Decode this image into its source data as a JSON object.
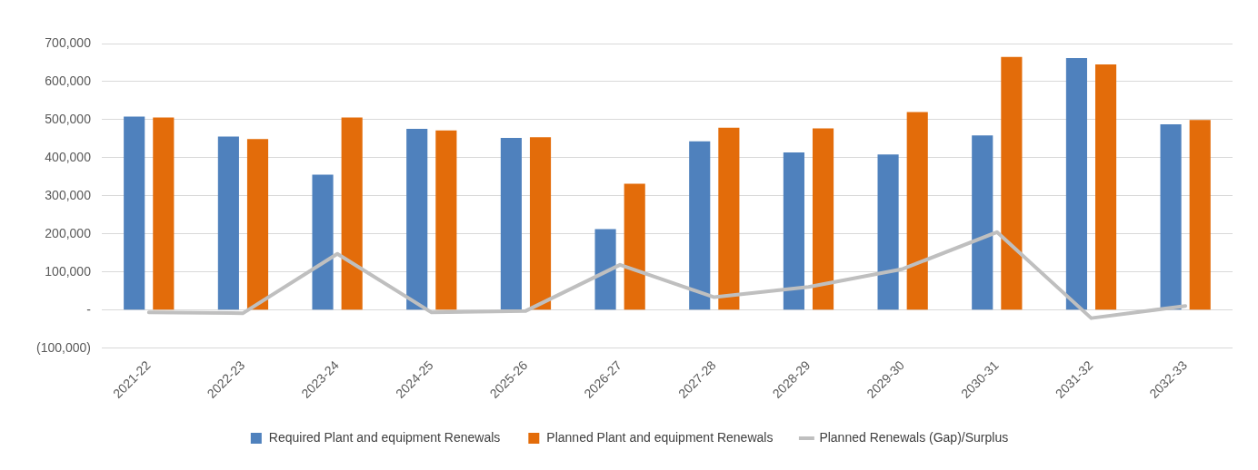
{
  "chart_data": {
    "type": "bar",
    "categories": [
      "2021-22",
      "2022-23",
      "2023-24",
      "2024-25",
      "2025-26",
      "2026-27",
      "2027-28",
      "2028-29",
      "2029-30",
      "2030-31",
      "2031-32",
      "2032-33"
    ],
    "series": [
      {
        "name": "Required Plant and equipment Renewals",
        "color": "#4f81bd",
        "values": [
          508000,
          456000,
          356000,
          476000,
          452000,
          213000,
          443000,
          414000,
          409000,
          459000,
          662000,
          488000
        ]
      },
      {
        "name": "Planned Plant and equipment Renewals",
        "color": "#e36c0a",
        "values": [
          506000,
          449000,
          506000,
          472000,
          454000,
          332000,
          479000,
          477000,
          520000,
          665000,
          645000,
          499000
        ]
      },
      {
        "name": "Planned Renewals (Gap)/Surplus",
        "type": "line",
        "color": "#bfbfbf",
        "values": [
          -6000,
          -8000,
          148000,
          -6000,
          -2000,
          119000,
          34000,
          61000,
          108000,
          205000,
          -21000,
          11000
        ]
      }
    ],
    "ylim": [
      -100000,
      700000
    ],
    "yticks": [
      {
        "value": -100000,
        "label": "(100,000)"
      },
      {
        "value": 0,
        "label": "-"
      },
      {
        "value": 100000,
        "label": "100,000"
      },
      {
        "value": 200000,
        "label": "200,000"
      },
      {
        "value": 300000,
        "label": "300,000"
      },
      {
        "value": 400000,
        "label": "400,000"
      },
      {
        "value": 500000,
        "label": "500,000"
      },
      {
        "value": 600000,
        "label": "600,000"
      },
      {
        "value": 700000,
        "label": "700,000"
      }
    ],
    "grid": "y",
    "legend": "bottom",
    "marker": "none",
    "line_style": "solid"
  }
}
